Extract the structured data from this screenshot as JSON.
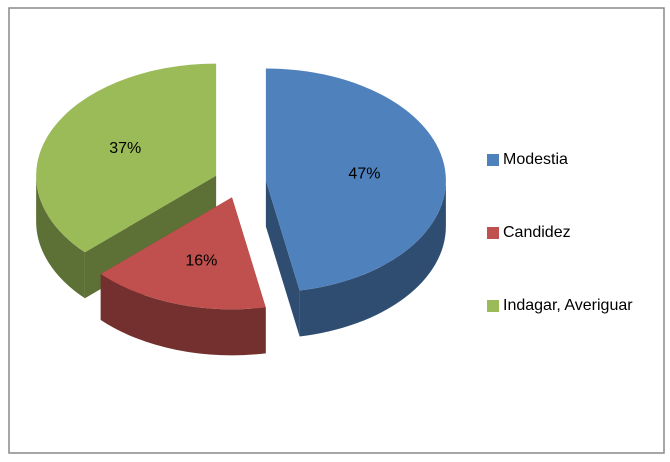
{
  "chart_data": {
    "type": "pie",
    "categories": [
      "Modestia",
      "Candidez",
      "Indagar, Averiguar"
    ],
    "values": [
      47,
      16,
      37
    ],
    "value_labels": [
      "47%",
      "16%",
      "37%"
    ],
    "colors": [
      "#4f81bd",
      "#c0504d",
      "#9bbb59"
    ],
    "legend": "right"
  }
}
